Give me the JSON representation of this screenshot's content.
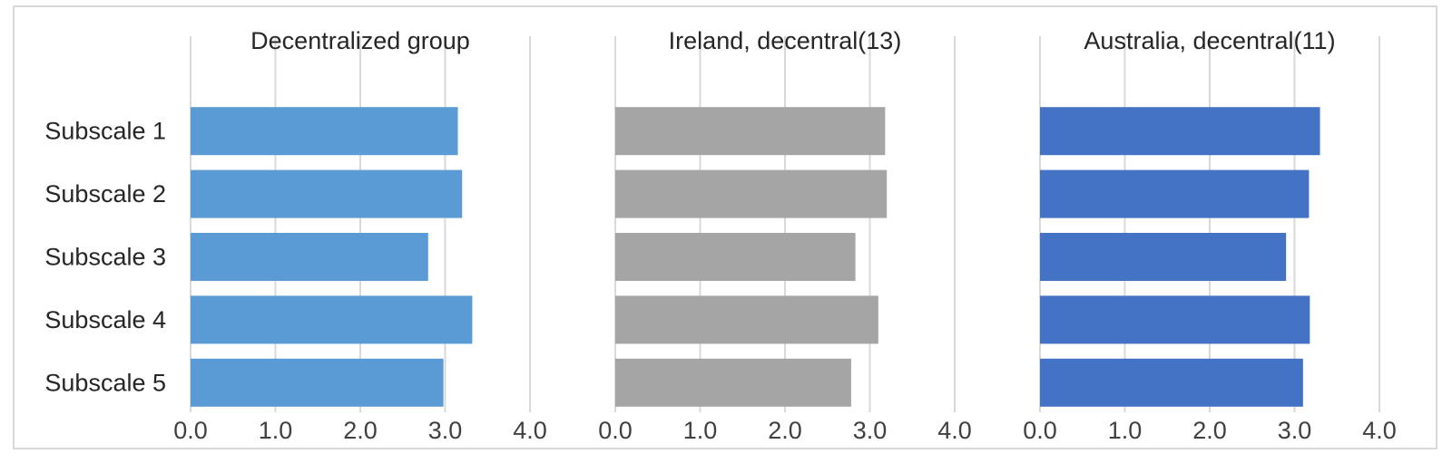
{
  "chart_data": {
    "type": "bar",
    "orientation": "horizontal",
    "categories": [
      "Subscale 1",
      "Subscale 2",
      "Subscale 3",
      "Subscale 4",
      "Subscale 5"
    ],
    "xlim": [
      0,
      4
    ],
    "xticks": [
      "0.0",
      "1.0",
      "2.0",
      "3.0",
      "4.0"
    ],
    "grid": true,
    "legend": "none",
    "panels": [
      {
        "title": "Decentralized group",
        "color": "#5b9bd5",
        "values": [
          3.15,
          3.2,
          2.8,
          3.32,
          2.98
        ]
      },
      {
        "title": "Ireland, decentral(13)",
        "color": "#a5a5a5",
        "values": [
          3.18,
          3.2,
          2.83,
          3.1,
          2.78
        ]
      },
      {
        "title": "Australia, decentral(11)",
        "color": "#4472c4",
        "values": [
          3.3,
          3.17,
          2.9,
          3.18,
          3.1
        ]
      }
    ]
  }
}
